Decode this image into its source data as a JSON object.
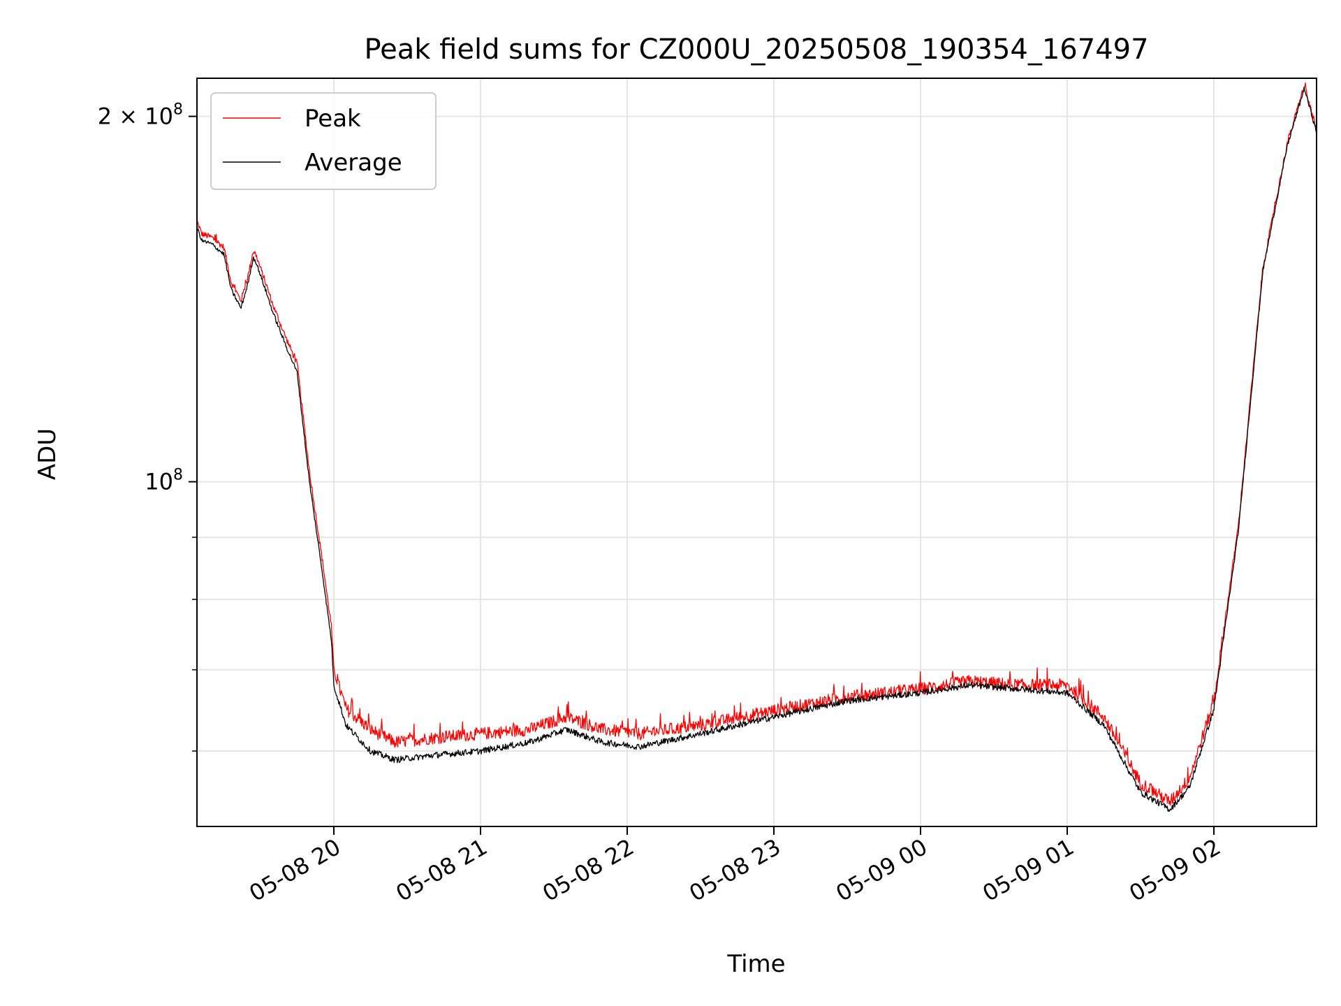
{
  "chart_data": {
    "type": "line",
    "title": "Peak field sums for CZ000U_20250508_190354_167497",
    "xlabel": "Time",
    "ylabel": "ADU",
    "y_scale": "log",
    "xlim": [
      "2025-05-08 19:04",
      "2025-05-09 02:42"
    ],
    "ylim": [
      52000000,
      215000000
    ],
    "x_ticks": [
      "05-08 20",
      "05-08 21",
      "05-08 22",
      "05-08 23",
      "05-09 00",
      "05-09 01",
      "05-09 02"
    ],
    "x_tick_times": [
      "2025-05-08 20:00",
      "2025-05-08 21:00",
      "2025-05-08 22:00",
      "2025-05-08 23:00",
      "2025-05-09 00:00",
      "2025-05-09 01:00",
      "2025-05-09 02:00"
    ],
    "y_major_ticks": [
      {
        "value": 100000000,
        "base": "10",
        "exp": "8",
        "coef": ""
      },
      {
        "value": 200000000,
        "base": "10",
        "exp": "8",
        "coef": "2 × "
      }
    ],
    "y_minor_ticks": [
      60000000,
      70000000,
      80000000,
      90000000,
      300000000
    ],
    "grid": true,
    "legend_position": "top-left",
    "series": [
      {
        "name": "Peak",
        "color": "#ff0000",
        "x": [
          "2025-05-08 19:04",
          "2025-05-08 19:06",
          "2025-05-08 19:10",
          "2025-05-08 19:15",
          "2025-05-08 19:18",
          "2025-05-08 19:22",
          "2025-05-08 19:25",
          "2025-05-08 19:27",
          "2025-05-08 19:28",
          "2025-05-08 19:32",
          "2025-05-08 19:35",
          "2025-05-08 19:40",
          "2025-05-08 19:45",
          "2025-05-08 19:50",
          "2025-05-08 19:55",
          "2025-05-08 19:59",
          "2025-05-08 20:00",
          "2025-05-08 20:05",
          "2025-05-08 20:15",
          "2025-05-08 20:25",
          "2025-05-08 20:40",
          "2025-05-08 21:00",
          "2025-05-08 21:20",
          "2025-05-08 21:35",
          "2025-05-08 21:50",
          "2025-05-08 22:05",
          "2025-05-08 22:30",
          "2025-05-08 23:00",
          "2025-05-08 23:30",
          "2025-05-09 00:00",
          "2025-05-09 00:20",
          "2025-05-09 00:40",
          "2025-05-09 01:00",
          "2025-05-09 01:15",
          "2025-05-09 01:30",
          "2025-05-09 01:42",
          "2025-05-09 01:50",
          "2025-05-09 02:00",
          "2025-05-09 02:10",
          "2025-05-09 02:20",
          "2025-05-09 02:30",
          "2025-05-09 02:37",
          "2025-05-09 02:42"
        ],
        "values": [
          164000000,
          160000000,
          159000000,
          156000000,
          146000000,
          141000000,
          148000000,
          155000000,
          154000000,
          146000000,
          140000000,
          132000000,
          125000000,
          102000000,
          87000000,
          76000000,
          70000000,
          65000000,
          62500000,
          61000000,
          61500000,
          62000000,
          62500000,
          64000000,
          62500000,
          62000000,
          63000000,
          64800000,
          66500000,
          67500000,
          68500000,
          68000000,
          68000000,
          64000000,
          56500000,
          54500000,
          57000000,
          66000000,
          92000000,
          150000000,
          190000000,
          212000000,
          195000000
        ]
      },
      {
        "name": "Average",
        "color": "#000000",
        "x": [
          "2025-05-08 19:04",
          "2025-05-08 19:06",
          "2025-05-08 19:10",
          "2025-05-08 19:15",
          "2025-05-08 19:18",
          "2025-05-08 19:22",
          "2025-05-08 19:25",
          "2025-05-08 19:27",
          "2025-05-08 19:28",
          "2025-05-08 19:32",
          "2025-05-08 19:35",
          "2025-05-08 19:40",
          "2025-05-08 19:45",
          "2025-05-08 19:50",
          "2025-05-08 19:55",
          "2025-05-08 19:59",
          "2025-05-08 20:00",
          "2025-05-08 20:05",
          "2025-05-08 20:15",
          "2025-05-08 20:25",
          "2025-05-08 20:40",
          "2025-05-08 21:00",
          "2025-05-08 21:20",
          "2025-05-08 21:35",
          "2025-05-08 21:50",
          "2025-05-08 22:05",
          "2025-05-08 22:30",
          "2025-05-08 23:00",
          "2025-05-08 23:30",
          "2025-05-09 00:00",
          "2025-05-09 00:20",
          "2025-05-09 00:40",
          "2025-05-09 01:00",
          "2025-05-09 01:15",
          "2025-05-09 01:30",
          "2025-05-09 01:42",
          "2025-05-09 01:50",
          "2025-05-09 02:00",
          "2025-05-09 02:10",
          "2025-05-09 02:20",
          "2025-05-09 02:30",
          "2025-05-09 02:37",
          "2025-05-09 02:42"
        ],
        "values": [
          162000000,
          158000000,
          157000000,
          154000000,
          144000000,
          139000000,
          146000000,
          153000000,
          152000000,
          144000000,
          138000000,
          130000000,
          123000000,
          100000000,
          85000000,
          74000000,
          68000000,
          63000000,
          60000000,
          59000000,
          59500000,
          60000000,
          61000000,
          62500000,
          61000000,
          60500000,
          62000000,
          64000000,
          66000000,
          67000000,
          68000000,
          67500000,
          67000000,
          63000000,
          55500000,
          53700000,
          56000000,
          65000000,
          91000000,
          149000000,
          189000000,
          211000000,
          194000000
        ]
      }
    ]
  }
}
